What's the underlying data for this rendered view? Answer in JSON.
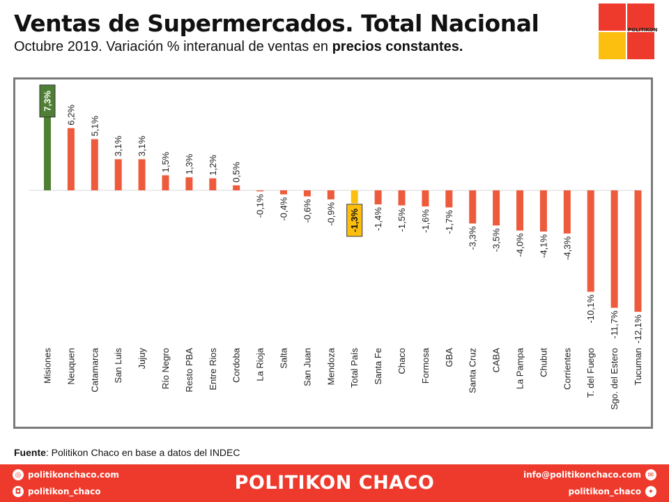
{
  "header": {
    "title": "Ventas de Supermercados. Total Nacional",
    "subtitle_plain": "Octubre 2019. Variación % interanual de ventas en ",
    "subtitle_bold": "precios constantes."
  },
  "logo": {
    "text": "POLITIKON",
    "colors": [
      "#ee3a2c",
      "#ee3a2c",
      "#fdbf0f",
      "#ee3a2c"
    ]
  },
  "source": {
    "label": "Fuente",
    "text": ": Politikon Chaco en base a datos del INDEC"
  },
  "footer": {
    "brand": "POLITIKON CHACO",
    "website": "politikonchaco.com",
    "instagram": "politikon_chaco",
    "email": "info@politikonchaco.com",
    "twitter": "politikon_chaco",
    "background": "#ee3a2c"
  },
  "colors": {
    "bar": "#ee5a3c",
    "highlight_bar": "#4f7f35",
    "total_bar": "#fdbf0f",
    "frame": "#7a7a7a"
  },
  "chart_data": {
    "type": "bar",
    "title": "",
    "xlabel": "",
    "ylabel": "",
    "ylim": [
      -12.5,
      8.5
    ],
    "grid": false,
    "categories": [
      "Misiones",
      "Neuquen",
      "Catamarca",
      "San Luis",
      "Jujuy",
      "Río Negro",
      "Resto PBA",
      "Entre Rios",
      "Cordoba",
      "La Rioja",
      "Salta",
      "San Juan",
      "Mendoza",
      "Total País",
      "Santa Fe",
      "Chaco",
      "Formosa",
      "GBA",
      "Santa Cruz",
      "CABA",
      "La Pampa",
      "Chubut",
      "Corrientes",
      "T. del Fuego",
      "Sgo. del Estero",
      "Tucuman"
    ],
    "values": [
      7.3,
      6.2,
      5.1,
      3.1,
      3.1,
      1.5,
      1.3,
      1.2,
      0.5,
      -0.1,
      -0.4,
      -0.6,
      -0.9,
      -1.3,
      -1.4,
      -1.5,
      -1.6,
      -1.7,
      -3.3,
      -3.5,
      -4.0,
      -4.1,
      -4.3,
      -10.1,
      -11.7,
      -12.1
    ],
    "labels": [
      "7,3%",
      "6,2%",
      "5,1%",
      "3,1%",
      "3,1%",
      "1,5%",
      "1,3%",
      "1,2%",
      "0,5%",
      "-0,1%",
      "-0,4%",
      "-0,6%",
      "-0,9%",
      "-1,3%",
      "-1,4%",
      "-1,5%",
      "-1,6%",
      "-1,7%",
      "-3,3%",
      "-3,5%",
      "-4,0%",
      "-4,1%",
      "-4,3%",
      "-10,1%",
      "-11,7%",
      "-12,1%"
    ],
    "highlight": {
      "Misiones": "highlight_bar",
      "Total País": "total_bar"
    }
  }
}
